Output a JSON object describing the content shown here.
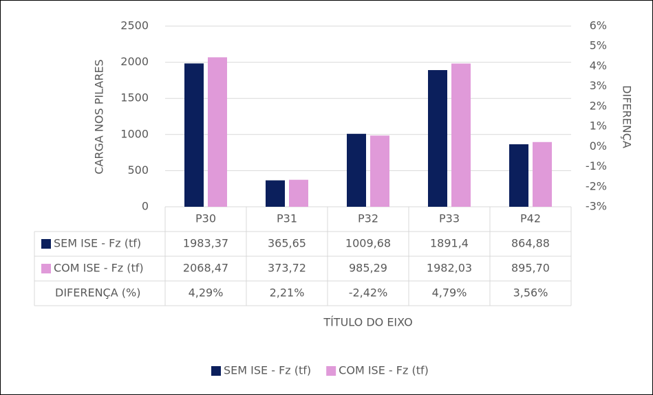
{
  "chart_data": {
    "type": "bar",
    "categories": [
      "P30",
      "P31",
      "P32",
      "P33",
      "P42"
    ],
    "series": [
      {
        "name": "SEM ISE - Fz (tf)",
        "color": "#0b1f5c",
        "values": [
          1983.37,
          365.65,
          1009.68,
          1891.4,
          864.88
        ],
        "value_labels": [
          "1983,37",
          "365,65",
          "1009,68",
          "1891,4",
          "864,88"
        ]
      },
      {
        "name": "COM ISE - Fz (tf)",
        "color": "#e09ad9",
        "values": [
          2068.47,
          373.72,
          985.29,
          1982.03,
          895.7
        ],
        "value_labels": [
          "2068,47",
          "373,72",
          "985,29",
          "1982,03",
          "895,70"
        ]
      },
      {
        "name": "DIFERENÇA (%)",
        "axis": "y2",
        "values": [
          4.29,
          2.21,
          -2.42,
          4.79,
          3.56
        ],
        "value_labels": [
          "4,29%",
          "2,21%",
          "-2,42%",
          "4,79%",
          "3,56%"
        ]
      }
    ],
    "y_label": "CARGA NOS PILARES",
    "y2_label": "DIFERENÇA",
    "x_label": "TÍTULO DO EIXO",
    "ylim": [
      0,
      2500
    ],
    "yticks": [
      0,
      500,
      1000,
      1500,
      2000,
      2500
    ],
    "y2lim": [
      -3,
      6
    ],
    "y2ticks": [
      {
        "value": -3,
        "label": "-3%"
      },
      {
        "value": -2,
        "label": "-2%"
      },
      {
        "value": -1,
        "label": "-1%"
      },
      {
        "value": 0,
        "label": "0%"
      },
      {
        "value": 1,
        "label": "1%"
      },
      {
        "value": 2,
        "label": "2%"
      },
      {
        "value": 3,
        "label": "3%"
      },
      {
        "value": 4,
        "label": "4%"
      },
      {
        "value": 5,
        "label": "5%"
      },
      {
        "value": 6,
        "label": "6%"
      }
    ],
    "grid": true,
    "legend": "bottom"
  }
}
